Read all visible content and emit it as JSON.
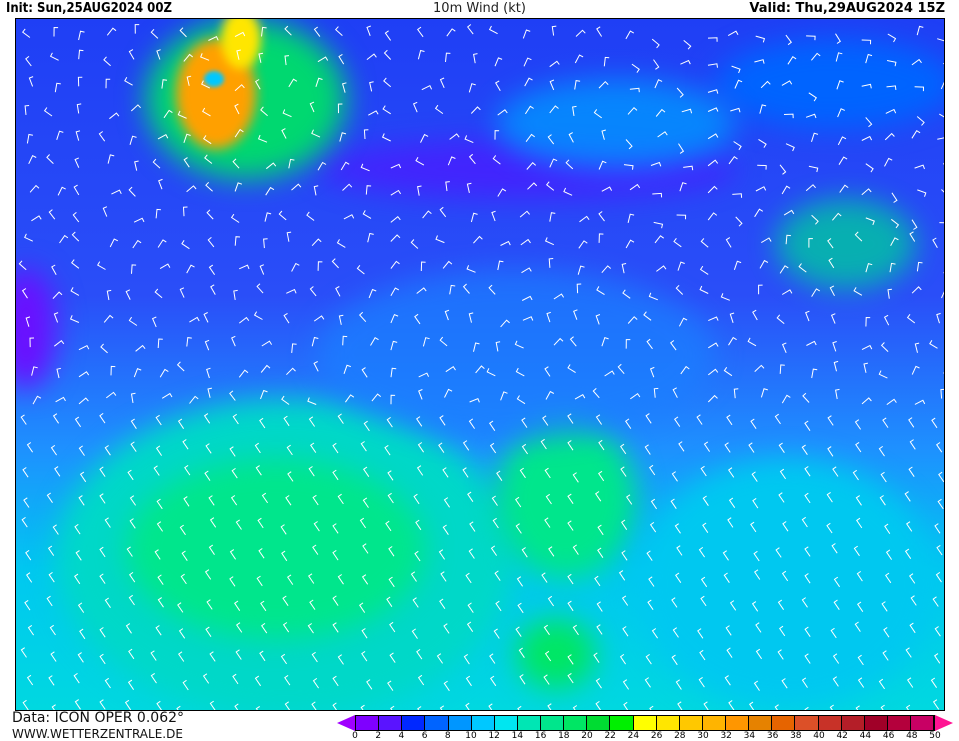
{
  "header": {
    "init": "Init: Sun,25AUG2024 00Z",
    "title": "10m Wind (kt)",
    "valid": "Valid: Thu,29AUG2024 15Z"
  },
  "footer": {
    "source": "Data: ICON OPER 0.062°",
    "site": "WWW.WETTERZENTRALE.DE"
  },
  "legend": {
    "unit": "kt",
    "ticks": [
      "0",
      "2",
      "4",
      "6",
      "8",
      "10",
      "12",
      "14",
      "16",
      "18",
      "20",
      "22",
      "24",
      "26",
      "28",
      "30",
      "32",
      "34",
      "36",
      "38",
      "40",
      "42",
      "44",
      "46",
      "48",
      "50"
    ],
    "colors": [
      "#7f00ff",
      "#5a14ff",
      "#0028ff",
      "#0064ff",
      "#0096ff",
      "#00c8ff",
      "#00e6f0",
      "#00e6b4",
      "#00e68c",
      "#00e664",
      "#00dc32",
      "#00f000",
      "#ffff00",
      "#ffe600",
      "#ffc800",
      "#ffb400",
      "#ff9600",
      "#e68200",
      "#e66400",
      "#dc5028",
      "#c83228",
      "#b41e28",
      "#a00028",
      "#b4003c",
      "#c80064"
    ],
    "under_color": "#a000ff",
    "over_color": "#ff1493"
  }
}
